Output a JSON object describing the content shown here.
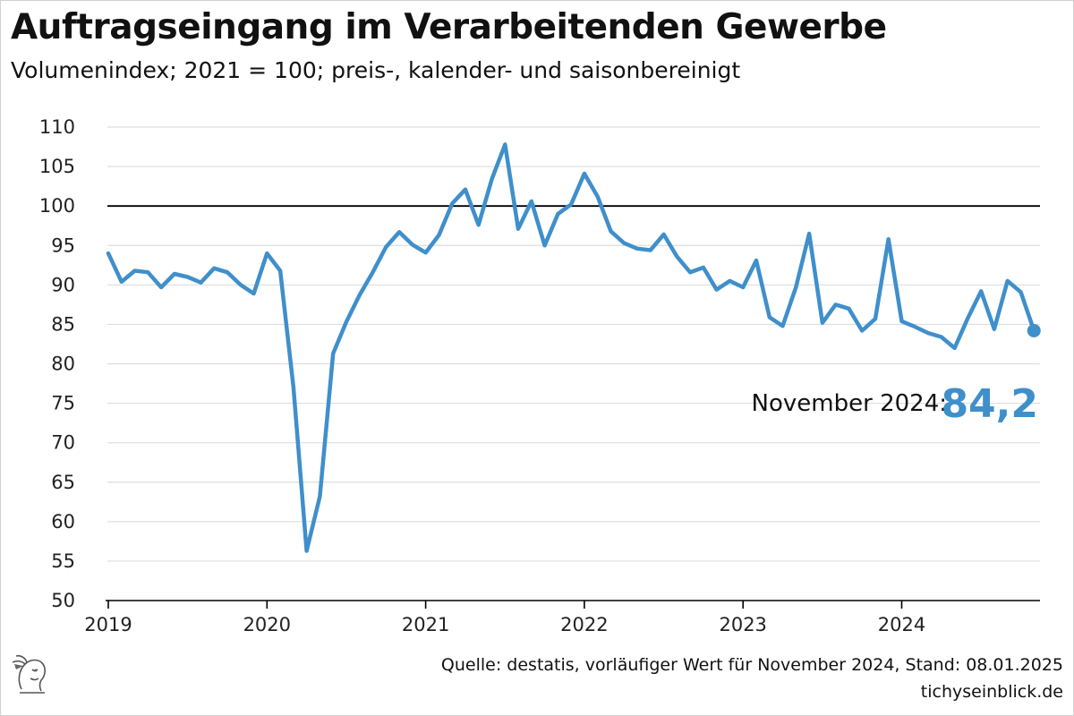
{
  "title": "Auftragseingang im Verarbeitenden Gewerbe",
  "subtitle": "Volumenindex; 2021 = 100; preis-, kalender- und saisonbereinigt",
  "source": "Quelle: destatis, vorläufiger Wert für November 2024, Stand: 08.01.2025",
  "site": "tichyseinblick.de",
  "colors": {
    "line": "#3f8fcb",
    "reference": "#000000",
    "grid": "#dddddd"
  },
  "chart_data": {
    "type": "line",
    "title": "Auftragseingang im Verarbeitenden Gewerbe",
    "subtitle": "Volumenindex; 2021 = 100; preis-, kalender- und saisonbereinigt",
    "xlabel": "",
    "ylabel": "",
    "ylim": [
      50,
      110
    ],
    "yticks": [
      50,
      55,
      60,
      65,
      70,
      75,
      80,
      85,
      90,
      95,
      100,
      105,
      110
    ],
    "xticks": [
      "2019",
      "2020",
      "2021",
      "2022",
      "2023",
      "2024"
    ],
    "grid": true,
    "reference_line": 100,
    "annotation": {
      "label": "November 2024:",
      "value": "84,2"
    },
    "x": [
      "2019-01",
      "2019-02",
      "2019-03",
      "2019-04",
      "2019-05",
      "2019-06",
      "2019-07",
      "2019-08",
      "2019-09",
      "2019-10",
      "2019-11",
      "2019-12",
      "2020-01",
      "2020-02",
      "2020-03",
      "2020-04",
      "2020-05",
      "2020-06",
      "2020-07",
      "2020-08",
      "2020-09",
      "2020-10",
      "2020-11",
      "2020-12",
      "2021-01",
      "2021-02",
      "2021-03",
      "2021-04",
      "2021-05",
      "2021-06",
      "2021-07",
      "2021-08",
      "2021-09",
      "2021-10",
      "2021-11",
      "2021-12",
      "2022-01",
      "2022-02",
      "2022-03",
      "2022-04",
      "2022-05",
      "2022-06",
      "2022-07",
      "2022-08",
      "2022-09",
      "2022-10",
      "2022-11",
      "2022-12",
      "2023-01",
      "2023-02",
      "2023-03",
      "2023-04",
      "2023-05",
      "2023-06",
      "2023-07",
      "2023-08",
      "2023-09",
      "2023-10",
      "2023-11",
      "2023-12",
      "2024-01",
      "2024-02",
      "2024-03",
      "2024-04",
      "2024-05",
      "2024-06",
      "2024-07",
      "2024-08",
      "2024-09",
      "2024-10",
      "2024-11"
    ],
    "series": [
      {
        "values": [
          94.0,
          90.4,
          91.8,
          91.6,
          89.7,
          91.4,
          91.0,
          90.3,
          92.1,
          91.6,
          90.0,
          88.9,
          94.0,
          91.8,
          77.0,
          56.3,
          63.2,
          81.3,
          85.3,
          88.7,
          91.6,
          94.8,
          96.7,
          95.1,
          94.1,
          96.3,
          100.3,
          102.1,
          97.6,
          103.4,
          107.8,
          97.1,
          100.6,
          95.0,
          99.0,
          100.2,
          104.1,
          101.2,
          96.8,
          95.3,
          94.6,
          94.4,
          96.4,
          93.6,
          91.6,
          92.2,
          89.4,
          90.5,
          89.7,
          93.1,
          85.9,
          84.8,
          89.7,
          96.5,
          85.2,
          87.5,
          87.0,
          84.2,
          85.7,
          95.8,
          85.4,
          84.7,
          83.9,
          83.4,
          82.0,
          85.8,
          89.2,
          84.4,
          90.5,
          89.1,
          84.2
        ]
      }
    ]
  }
}
